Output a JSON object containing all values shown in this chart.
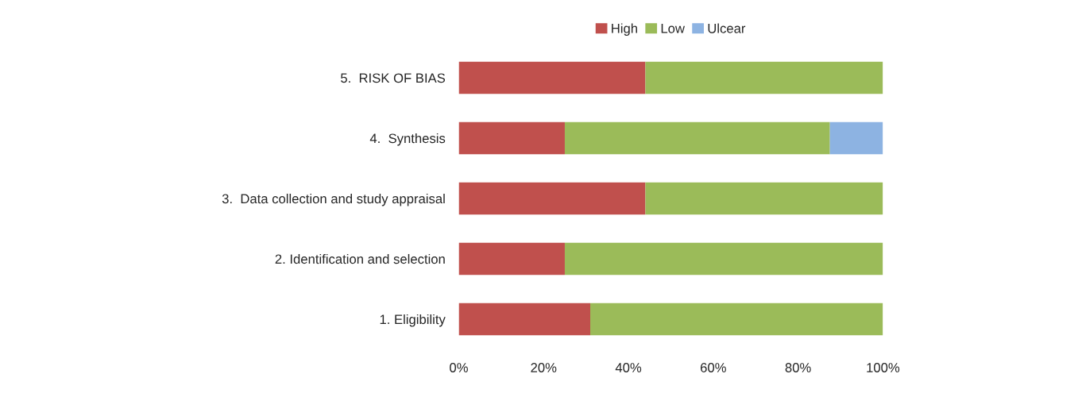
{
  "chart_data": {
    "type": "bar",
    "orientation": "horizontal",
    "stacked": true,
    "categories": [
      "5.  RISK OF BIAS",
      "4.  Synthesis",
      "3.  Data collection and study appraisal",
      "2. Identification and selection",
      "1. Eligibility"
    ],
    "series": [
      {
        "name": "High",
        "color": "#c0504d",
        "values": [
          44,
          25,
          44,
          25,
          31
        ]
      },
      {
        "name": "Low",
        "color": "#9bbb59",
        "values": [
          56,
          62.5,
          56,
          75,
          69
        ]
      },
      {
        "name": "Ulcear",
        "color": "#8db3e2",
        "values": [
          0,
          12.5,
          0,
          0,
          0
        ]
      }
    ],
    "xlim": [
      0,
      100
    ],
    "xticks": [
      {
        "value": 0,
        "label": "0%"
      },
      {
        "value": 20,
        "label": "20%"
      },
      {
        "value": 40,
        "label": "40%"
      },
      {
        "value": 60,
        "label": "60%"
      },
      {
        "value": 80,
        "label": "80%"
      },
      {
        "value": 100,
        "label": "100%"
      }
    ],
    "legend": "top",
    "grid": false
  }
}
